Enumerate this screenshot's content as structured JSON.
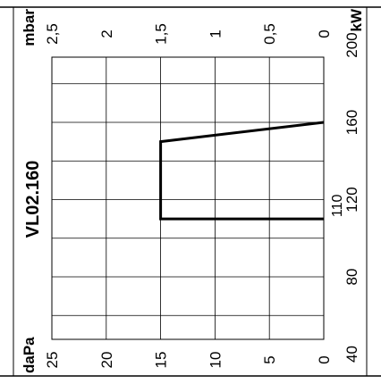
{
  "chart_data": {
    "type": "line",
    "title": "VL02.160",
    "orientation": "rotated",
    "x_axis": {
      "label": "kW",
      "range": [
        40,
        230
      ],
      "ticks": [
        "40",
        "80",
        "120",
        "160",
        "200"
      ]
    },
    "y_axis_bottom": {
      "label": "daPa",
      "range": [
        0,
        25
      ],
      "ticks": [
        "0",
        "5",
        "10",
        "15",
        "20",
        "25"
      ]
    },
    "y_axis_top": {
      "label": "mbar",
      "range": [
        0,
        2.5
      ],
      "ticks": [
        "0",
        "0,5",
        "1",
        "1,5",
        "2",
        "2,5"
      ]
    },
    "annotations": [
      {
        "text": "110"
      }
    ],
    "series": [
      {
        "points": [
          [
            110,
            0
          ],
          [
            110,
            15
          ],
          [
            150,
            15
          ],
          [
            160,
            0
          ]
        ]
      }
    ],
    "grid": true,
    "line_color": "#000000"
  }
}
